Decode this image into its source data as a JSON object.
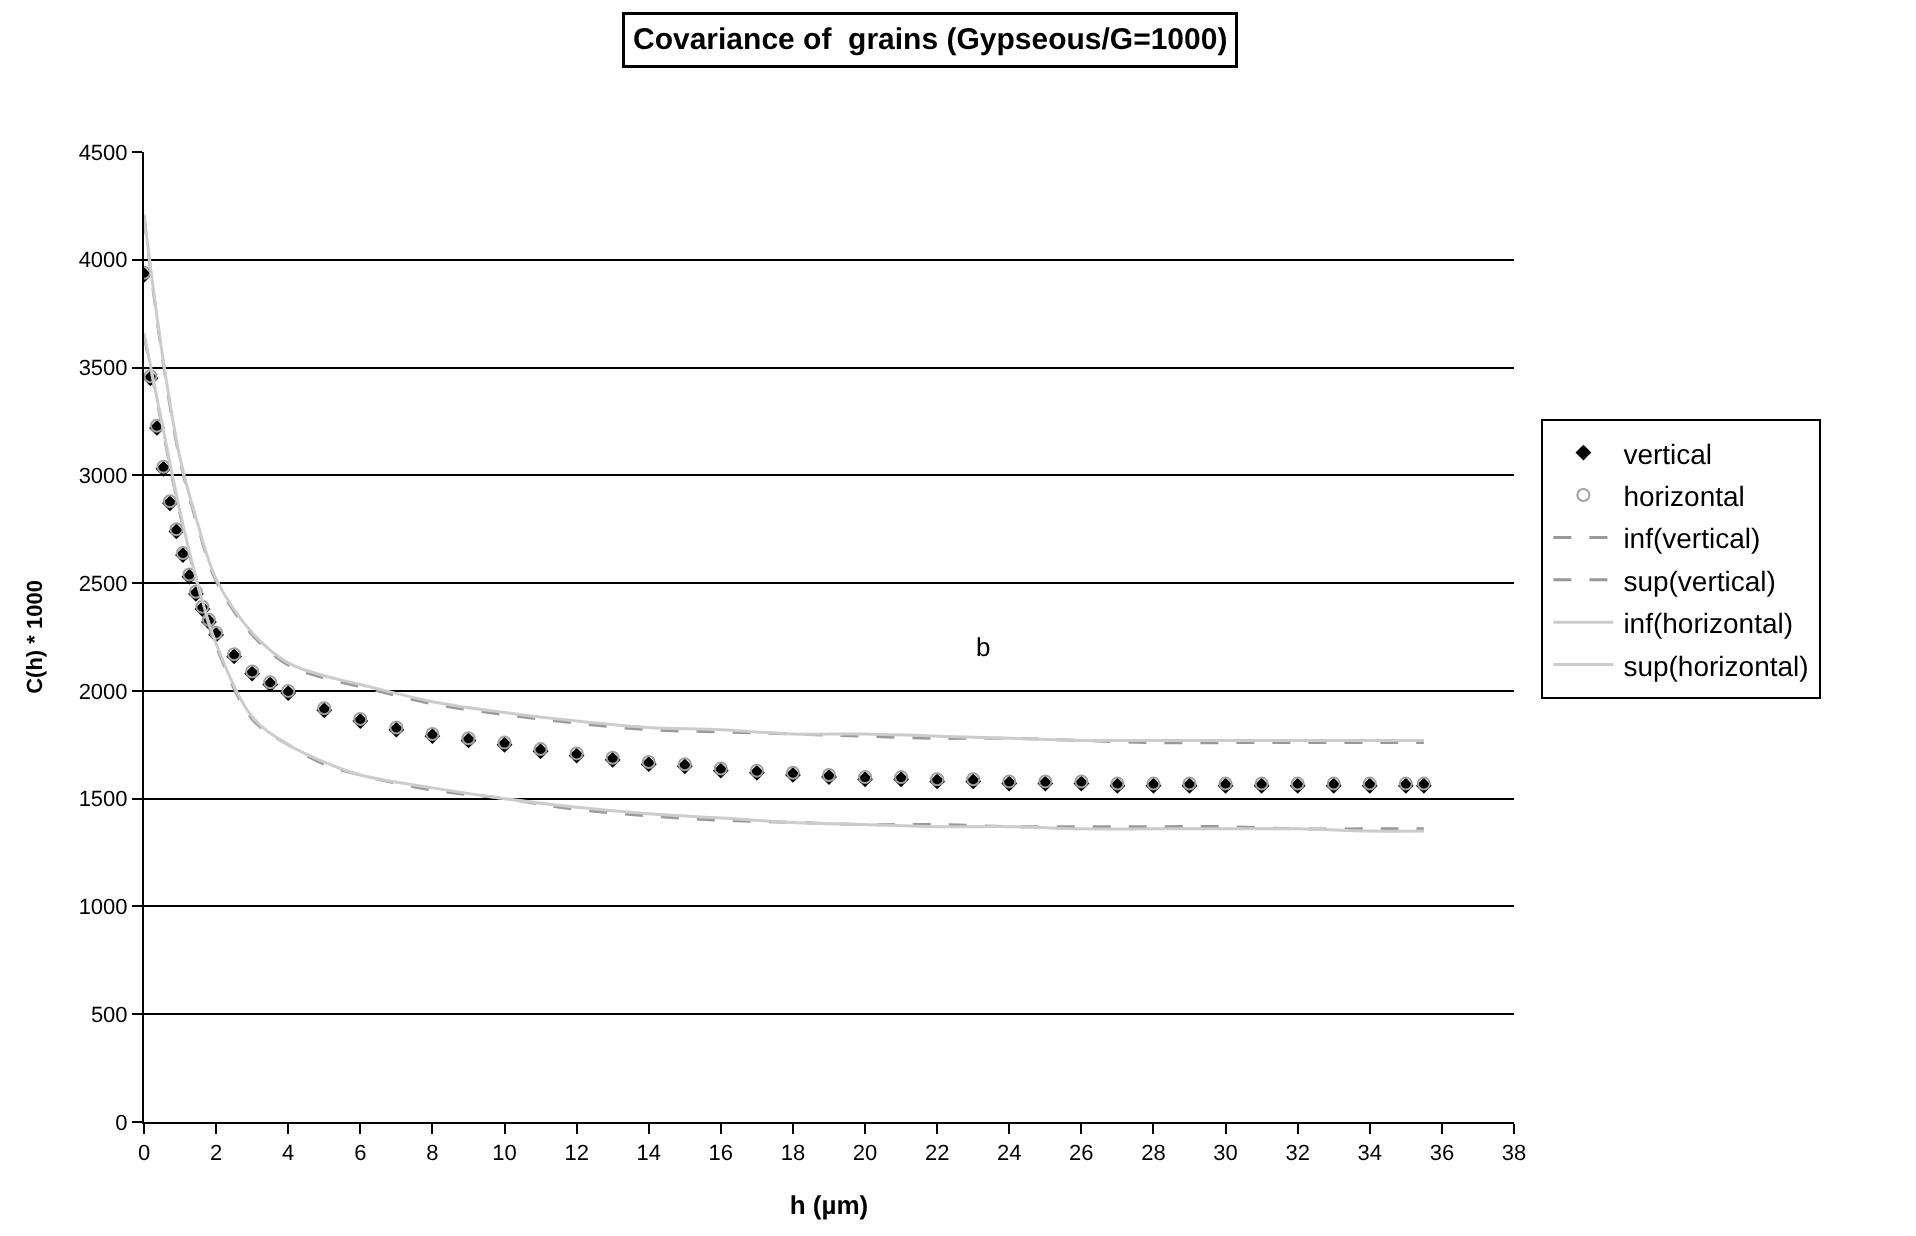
{
  "chart_data": {
    "type": "scatter",
    "title": "Covariance of  grains (Gypseous/G=1000)",
    "xlabel": "h (µm)",
    "ylabel": "C(h) * 1000",
    "annotations": [
      "b"
    ],
    "xlim": [
      0,
      38
    ],
    "xticks": [
      0,
      2,
      4,
      6,
      8,
      10,
      12,
      14,
      16,
      18,
      20,
      22,
      24,
      26,
      28,
      30,
      32,
      34,
      36,
      38
    ],
    "ylim": [
      0,
      4500
    ],
    "yticks": [
      0,
      500,
      1000,
      1500,
      2000,
      2500,
      3000,
      3500,
      4000,
      4500
    ],
    "grid": "y",
    "legend": "right",
    "series": [
      {
        "name": "vertical",
        "marker": "diamond",
        "color": "#000000",
        "x": [
          0,
          0.18,
          0.36,
          0.54,
          0.72,
          0.9,
          1.08,
          1.26,
          1.44,
          1.62,
          1.8,
          2,
          2.5,
          3,
          3.5,
          4,
          5,
          6,
          7,
          8,
          9,
          10,
          11,
          12,
          13,
          14,
          15,
          16,
          17,
          18,
          19,
          20,
          21,
          22,
          23,
          24,
          25,
          26,
          27,
          28,
          29,
          30,
          31,
          32,
          33,
          34,
          35,
          35.5
        ],
        "values": [
          3930,
          3450,
          3220,
          3030,
          2870,
          2740,
          2630,
          2530,
          2450,
          2380,
          2320,
          2260,
          2160,
          2080,
          2030,
          1990,
          1910,
          1860,
          1820,
          1790,
          1770,
          1750,
          1720,
          1700,
          1680,
          1660,
          1650,
          1630,
          1620,
          1610,
          1600,
          1590,
          1590,
          1580,
          1580,
          1570,
          1570,
          1570,
          1560,
          1560,
          1560,
          1560,
          1560,
          1560,
          1560,
          1560,
          1560,
          1560
        ]
      },
      {
        "name": "horizontal",
        "marker": "circle",
        "color": "#a0a0a0",
        "x": [
          0,
          0.18,
          0.36,
          0.54,
          0.72,
          0.9,
          1.08,
          1.26,
          1.44,
          1.62,
          1.8,
          2,
          2.5,
          3,
          3.5,
          4,
          5,
          6,
          7,
          8,
          9,
          10,
          11,
          12,
          13,
          14,
          15,
          16,
          17,
          18,
          19,
          20,
          21,
          22,
          23,
          24,
          25,
          26,
          27,
          28,
          29,
          30,
          31,
          32,
          33,
          34,
          35,
          35.5
        ],
        "values": [
          3940,
          3460,
          3230,
          3040,
          2880,
          2750,
          2640,
          2540,
          2460,
          2390,
          2330,
          2270,
          2170,
          2090,
          2040,
          2000,
          1920,
          1870,
          1830,
          1800,
          1780,
          1760,
          1730,
          1710,
          1690,
          1670,
          1660,
          1640,
          1630,
          1620,
          1610,
          1600,
          1600,
          1590,
          1590,
          1580,
          1580,
          1580,
          1570,
          1570,
          1570,
          1570,
          1570,
          1570,
          1570,
          1570,
          1570,
          1570
        ]
      },
      {
        "name": "inf(vertical)",
        "type": "line",
        "line_style": "dashed",
        "color": "#999999",
        "x": [
          0,
          0.5,
          1,
          1.5,
          2,
          3,
          4,
          5,
          6,
          8,
          10,
          12,
          14,
          16,
          18,
          20,
          22,
          24,
          26,
          28,
          30,
          32,
          34,
          35.5
        ],
        "values": [
          3650,
          3230,
          2820,
          2480,
          2210,
          1870,
          1750,
          1660,
          1610,
          1540,
          1500,
          1450,
          1420,
          1400,
          1390,
          1380,
          1380,
          1370,
          1370,
          1370,
          1370,
          1360,
          1360,
          1360
        ]
      },
      {
        "name": "sup(vertical)",
        "type": "line",
        "line_style": "dashed",
        "color": "#999999",
        "x": [
          0,
          0.5,
          1,
          1.5,
          2,
          3,
          4,
          5,
          6,
          8,
          10,
          12,
          14,
          16,
          18,
          20,
          22,
          24,
          26,
          28,
          30,
          32,
          34,
          35.5
        ],
        "values": [
          4200,
          3560,
          3070,
          2760,
          2510,
          2260,
          2120,
          2060,
          2020,
          1940,
          1890,
          1850,
          1820,
          1810,
          1800,
          1790,
          1780,
          1780,
          1770,
          1760,
          1760,
          1760,
          1760,
          1760
        ]
      },
      {
        "name": "inf(horizontal)",
        "type": "line",
        "line_style": "solid",
        "color": "#cccccc",
        "x": [
          0,
          0.5,
          1,
          1.5,
          2,
          3,
          4,
          5,
          6,
          8,
          10,
          12,
          14,
          16,
          18,
          20,
          22,
          24,
          26,
          28,
          30,
          32,
          34,
          35.5
        ],
        "values": [
          3660,
          3240,
          2830,
          2490,
          2220,
          1880,
          1750,
          1670,
          1610,
          1550,
          1500,
          1460,
          1430,
          1410,
          1390,
          1380,
          1370,
          1370,
          1360,
          1360,
          1360,
          1360,
          1350,
          1350
        ]
      },
      {
        "name": "sup(horizontal)",
        "type": "line",
        "line_style": "solid",
        "color": "#cccccc",
        "x": [
          0,
          0.5,
          1,
          1.5,
          2,
          3,
          4,
          5,
          6,
          8,
          10,
          12,
          14,
          16,
          18,
          20,
          22,
          24,
          26,
          28,
          30,
          32,
          34,
          35.5
        ],
        "values": [
          4210,
          3570,
          3080,
          2770,
          2520,
          2270,
          2130,
          2070,
          2030,
          1950,
          1900,
          1860,
          1830,
          1820,
          1800,
          1800,
          1790,
          1780,
          1770,
          1770,
          1770,
          1770,
          1770,
          1770
        ]
      }
    ]
  }
}
